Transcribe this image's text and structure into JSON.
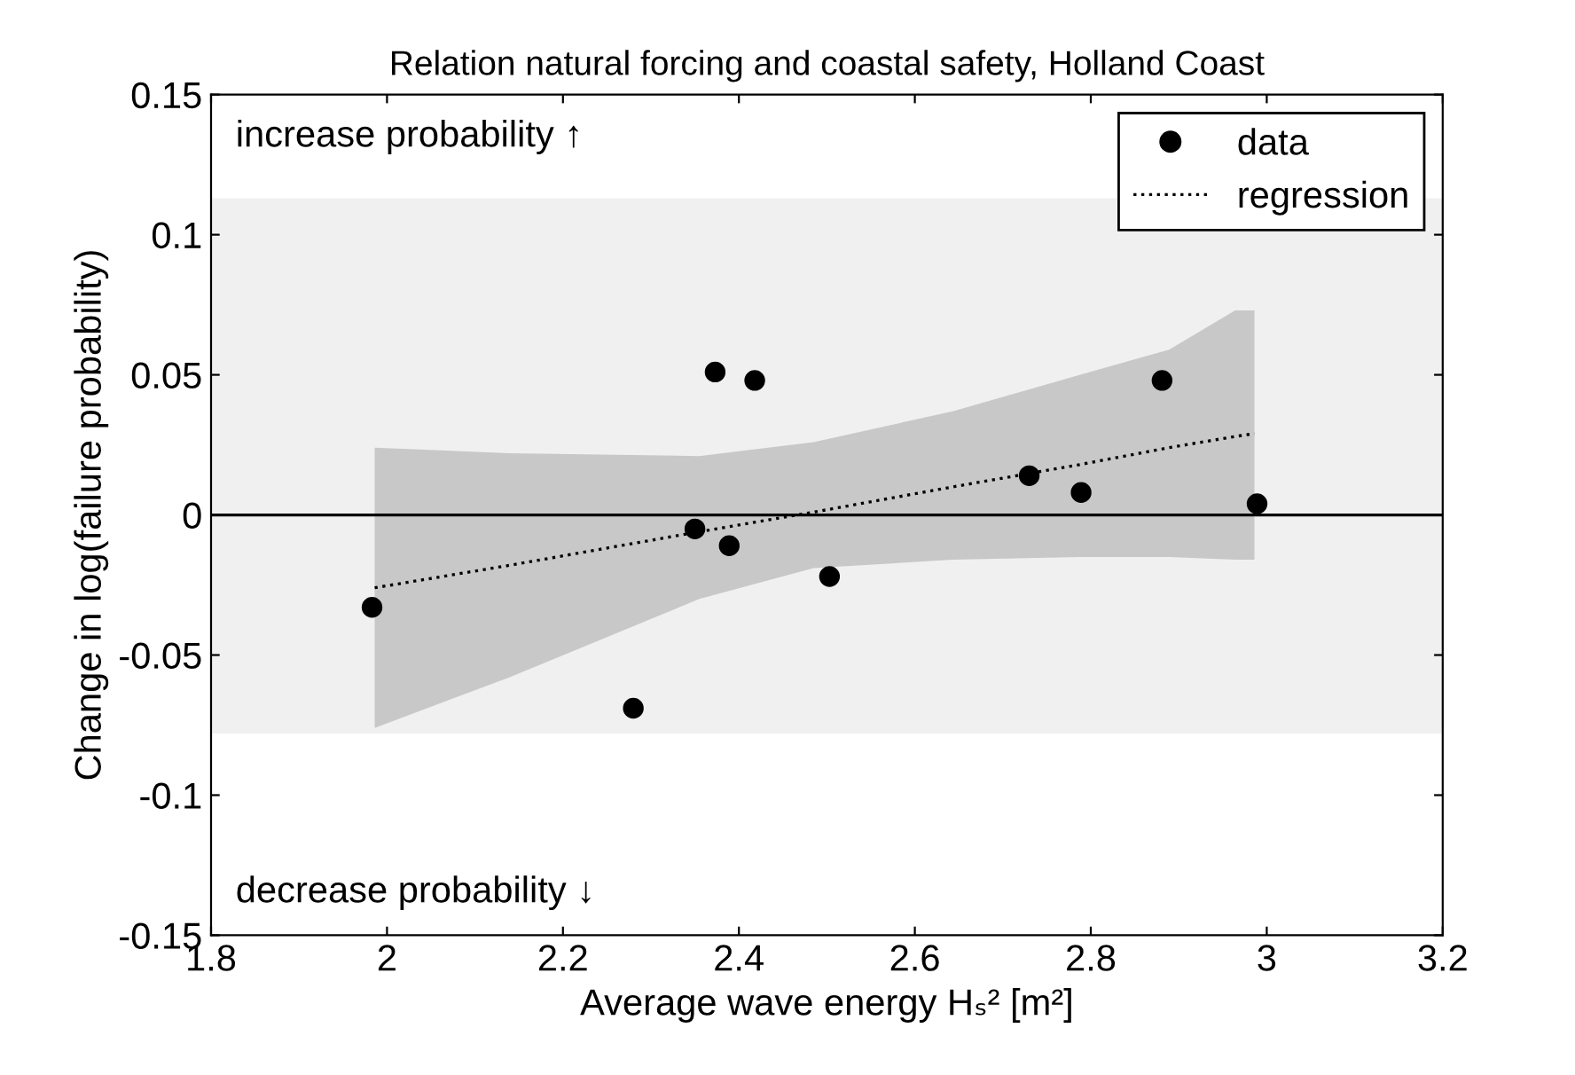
{
  "chart_data": {
    "type": "scatter",
    "title": "Relation natural forcing and coastal safety, Holland Coast",
    "xlabel": "Average wave energy Hₛ² [m²]",
    "ylabel": "Change in log(failure probability)",
    "annotations": [
      "increase probability ↑",
      "decrease probability ↓"
    ],
    "series": [
      {
        "name": "data",
        "color": "#000000",
        "marker": "circle",
        "x": [
          1.983,
          2.28,
          2.35,
          2.373,
          2.389,
          2.418,
          2.503,
          2.73,
          2.789,
          2.881,
          2.989
        ],
        "values": [
          -0.033,
          -0.069,
          -0.005,
          0.051,
          -0.011,
          0.048,
          -0.022,
          0.014,
          0.008,
          0.048,
          0.004
        ]
      },
      {
        "name": "regression",
        "type": "line",
        "color": "#000000",
        "line_style": "dotted",
        "marker": "none",
        "x": [
          1.986,
          2.139,
          2.355,
          2.485,
          2.643,
          2.788,
          2.889,
          2.964,
          2.986
        ],
        "values": [
          -0.026,
          -0.018,
          -0.006,
          0.001,
          0.01,
          0.018,
          0.024,
          0.028,
          0.029
        ],
        "lower": [
          -0.076,
          -0.058,
          -0.03,
          -0.019,
          -0.016,
          -0.015,
          -0.015,
          -0.016,
          -0.016
        ],
        "upper": [
          0.024,
          0.022,
          0.021,
          0.026,
          0.037,
          0.05,
          0.059,
          0.073,
          0.073
        ]
      }
    ],
    "ref_lines": [
      {
        "axis": "y",
        "value": 0,
        "color": "#000000",
        "line_style": "solid"
      }
    ],
    "bands": [
      {
        "axis": "y",
        "from": -0.078,
        "to": 0.113,
        "color": "#f0f0f0"
      }
    ],
    "xlim": [
      1.8,
      3.2
    ],
    "xticks": [
      1.8,
      2,
      2.2,
      2.4,
      2.6,
      2.8,
      3,
      3.2
    ],
    "ylim": [
      -0.15,
      0.15
    ],
    "yticks": [
      -0.15,
      -0.1,
      -0.05,
      0,
      0.05,
      0.1,
      0.15
    ],
    "grid": false,
    "legend": "top right"
  }
}
